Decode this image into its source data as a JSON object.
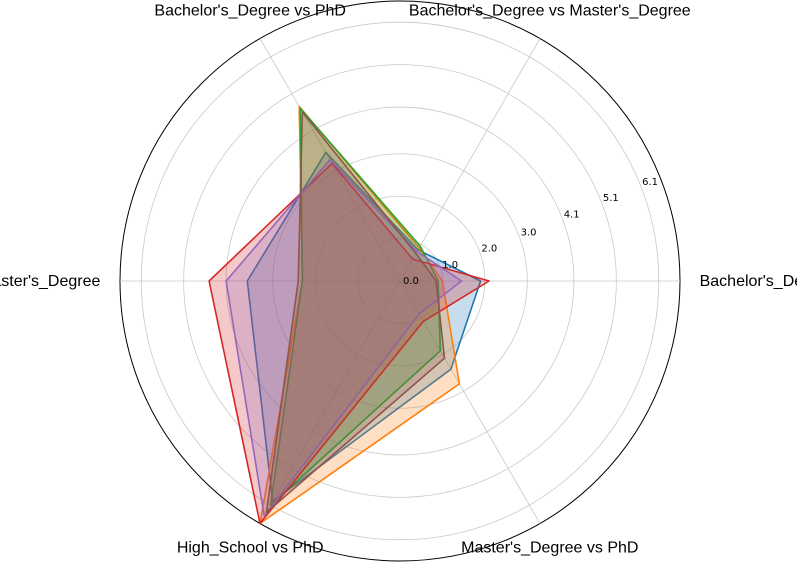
{
  "chart_data": {
    "type": "radar",
    "title": "",
    "axes": [
      "Bachelor's_Degree vs High_School",
      "Bachelor's_Degree vs Master's_Degree",
      "Bachelor's_Degree vs PhD",
      "High_School vs Master's_Degree",
      "High_School vs PhD",
      "Master's_Degree vs PhD"
    ],
    "radial_ticks": [
      "0.0",
      "1.0",
      "2.0",
      "3.0",
      "4.1",
      "5.1",
      "6.1"
    ],
    "rlim": [
      0,
      6.6
    ],
    "grid": true,
    "series": [
      {
        "color": "#1f77b4",
        "values": [
          1.9,
          0.85,
          3.5,
          3.6,
          6.0,
          2.4
        ]
      },
      {
        "color": "#ff7f0e",
        "values": [
          1.0,
          0.9,
          4.75,
          2.3,
          6.6,
          2.8
        ]
      },
      {
        "color": "#2ca02c",
        "values": [
          0.9,
          0.95,
          4.7,
          2.3,
          6.1,
          1.9
        ]
      },
      {
        "color": "#d62728",
        "values": [
          2.1,
          0.6,
          3.2,
          4.5,
          6.6,
          1.1
        ]
      },
      {
        "color": "#9467bd",
        "values": [
          1.45,
          0.8,
          3.3,
          4.1,
          6.4,
          0.9
        ]
      },
      {
        "color": "#8c564b",
        "values": [
          0.85,
          0.75,
          4.6,
          2.4,
          6.3,
          2.1
        ]
      }
    ]
  }
}
